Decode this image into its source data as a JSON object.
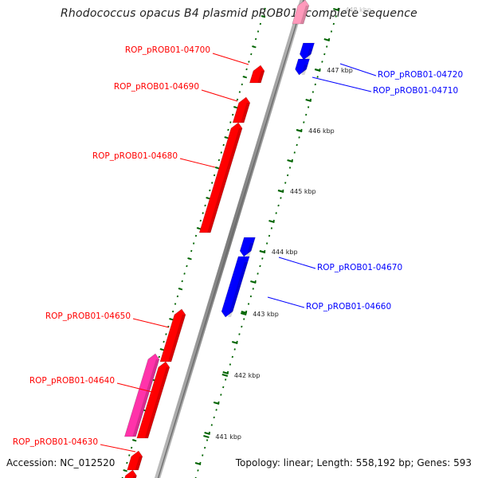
{
  "title": "Rhodococcus opacus B4 plasmid pROB01, complete sequence",
  "accession": "Accession: NC_012520",
  "summary": "Topology: linear; Length: 558,192 bp; Genes: 593",
  "colors": {
    "forward": "#ff0000",
    "reverse": "#0000ff",
    "pink": "#ff33aa",
    "axis": "#888888",
    "tick": "#006400"
  },
  "scale": {
    "unit": "kbp",
    "ticks": [
      441,
      442,
      443,
      444,
      445,
      446,
      447,
      448
    ]
  },
  "labeled_genes": [
    {
      "name": "ROP_pROB01-04720",
      "strand": "reverse"
    },
    {
      "name": "ROP_pROB01-04710",
      "strand": "reverse"
    },
    {
      "name": "ROP_pROB01-04700",
      "strand": "forward"
    },
    {
      "name": "ROP_pROB01-04690",
      "strand": "forward"
    },
    {
      "name": "ROP_pROB01-04680",
      "strand": "forward"
    },
    {
      "name": "ROP_pROB01-04670",
      "strand": "reverse"
    },
    {
      "name": "ROP_pROB01-04660",
      "strand": "reverse"
    },
    {
      "name": "ROP_pROB01-04650",
      "strand": "forward"
    },
    {
      "name": "ROP_pROB01-04640",
      "strand": "forward"
    },
    {
      "name": "ROP_pROB01-04630",
      "strand": "forward"
    }
  ]
}
